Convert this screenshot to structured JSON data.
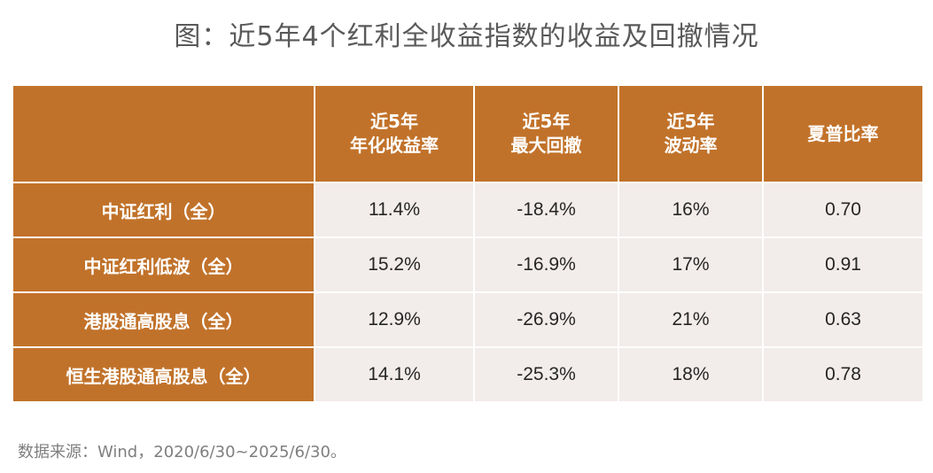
{
  "title": "图：近5年4个红利全收益指数的收益及回撤情况",
  "table": {
    "headers": [
      {
        "line1": "",
        "line2": ""
      },
      {
        "line1": "近5年",
        "line2": "年化收益率"
      },
      {
        "line1": "近5年",
        "line2": "最大回撤"
      },
      {
        "line1": "近5年",
        "line2": "波动率"
      },
      {
        "line1": "夏普比率",
        "line2": ""
      }
    ],
    "rows": [
      {
        "name": "中证红利（全）",
        "return": "11.4%",
        "drawdown": "-18.4%",
        "volatility": "16%",
        "sharpe": "0.70"
      },
      {
        "name": "中证红利低波（全）",
        "return": "15.2%",
        "drawdown": "-16.9%",
        "volatility": "17%",
        "sharpe": "0.91"
      },
      {
        "name": "港股通高股息（全）",
        "return": "12.9%",
        "drawdown": "-26.9%",
        "volatility": "21%",
        "sharpe": "0.63"
      },
      {
        "name": "恒生港股通高股息（全）",
        "return": "14.1%",
        "drawdown": "-25.3%",
        "volatility": "18%",
        "sharpe": "0.78"
      }
    ]
  },
  "source": "数据来源：Wind，2020/6/30~2025/6/30。",
  "colors": {
    "header_bg": "#c1722a",
    "cell_bg": "#f2ecea",
    "title_text": "#595959",
    "source_text": "#7f7f7f"
  }
}
